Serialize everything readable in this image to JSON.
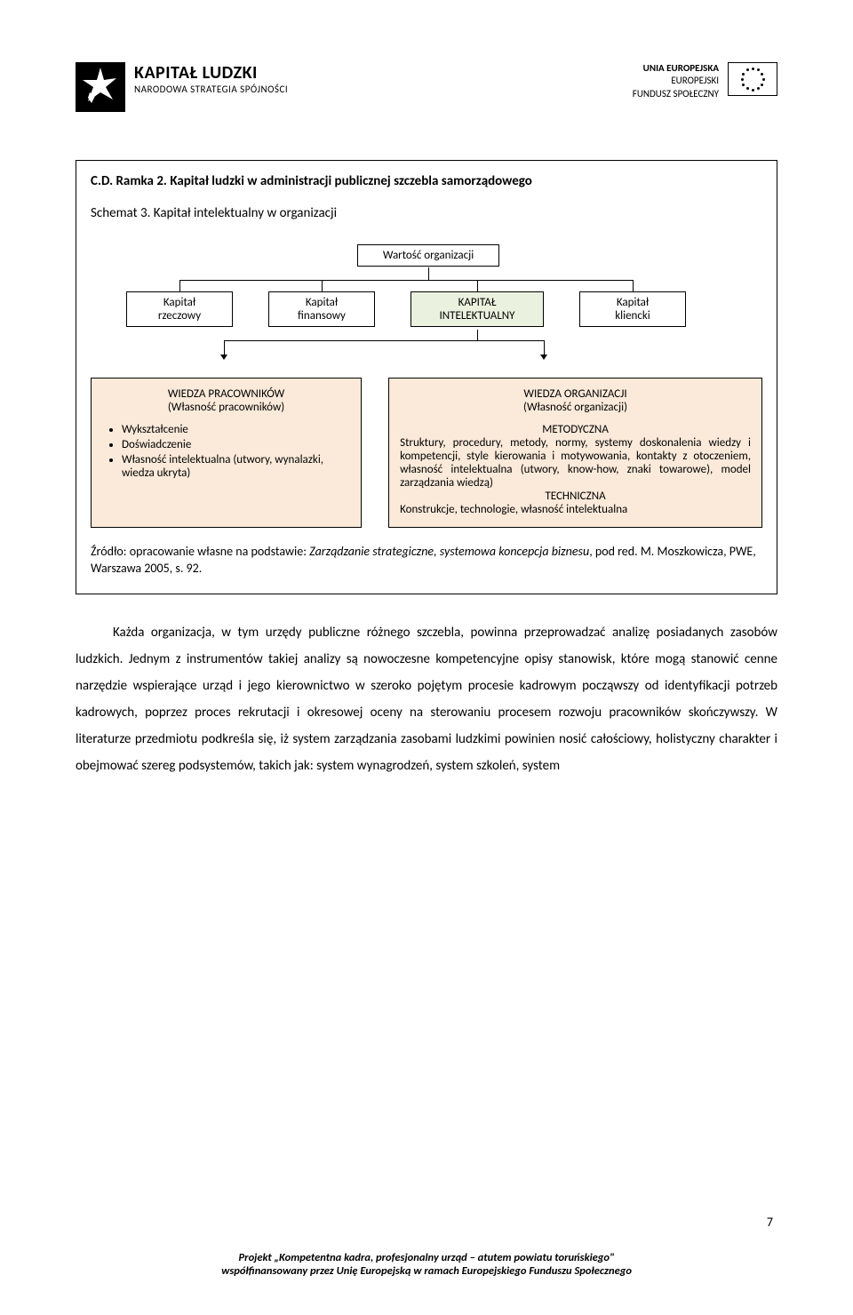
{
  "header": {
    "left": {
      "title": "KAPITAŁ LUDZKI",
      "sub": "NARODOWA STRATEGIA SPÓJNOŚCI"
    },
    "right": {
      "l1": "UNIA EUROPEJSKA",
      "l2": "EUROPEJSKI",
      "l3": "FUNDUSZ SPOŁECZNY"
    }
  },
  "frame": {
    "title": "C.D. Ramka 2. Kapitał ludzki w administracji publicznej szczebla samorządowego",
    "subtitle": "Schemat 3. Kapitał intelektualny w organizacji",
    "top_box": "Wartość organizacji",
    "row": {
      "b1a": "Kapitał",
      "b1b": "rzeczowy",
      "b2a": "Kapitał",
      "b2b": "finansowy",
      "b3a": "KAPITAŁ",
      "b3b": "INTELEKTUALNY",
      "b4a": "Kapitał",
      "b4b": "kliencki"
    },
    "panel_left": {
      "h": "WIEDZA PRACOWNIKÓW",
      "sub": "(Własność pracowników)",
      "items": [
        "Wykształcenie",
        "Doświadczenie",
        "Własność intelektualna (utwory, wynalazki, wiedza ukryta)"
      ]
    },
    "panel_right": {
      "h": "WIEDZA ORGANIZACJI",
      "sub": "(Własność organizacji)",
      "met_label": "METODYCZNA",
      "met_body": "Struktury, procedury, metody, normy, systemy doskonalenia wiedzy i kompetencji, style kierowania i motywowania, kontakty z otoczeniem, własność intelektualna (utwory, know-how, znaki towarowe), model zarządzania wiedzą)",
      "tech_label": "TECHNICZNA",
      "tech_body": "Konstrukcje, technologie, własność intelektualna"
    },
    "source_pre": "Źródło: opracowanie własne na podstawie: ",
    "source_ital": "Zarządzanie strategiczne, systemowa koncepcja biznesu",
    "source_post": ", pod red. M. Moszkowicza, PWE, Warszawa 2005, s. 92."
  },
  "body_para": "Każda organizacja, w tym urzędy publiczne różnego szczebla, powinna przeprowadzać analizę posiadanych zasobów ludzkich. Jednym z instrumentów takiej analizy są nowoczesne kompetencyjne opisy stanowisk, które mogą stanowić cenne narzędzie wspierające urząd i jego kierownictwo w szeroko pojętym procesie kadrowym począwszy od identyfikacji potrzeb kadrowych, poprzez proces rekrutacji i okresowej oceny na sterowaniu procesem rozwoju pracowników skończywszy. W literaturze przedmiotu podkreśla się, iż system zarządzania zasobami ludzkimi powinien nosić całościowy, holistyczny charakter i obejmować szereg podsystemów, takich jak: system wynagrodzeń, system szkoleń, system",
  "footer": {
    "l1": "Projekt „Kompetentna kadra, profesjonalny urząd – atutem powiatu toruńskiego\"",
    "l2": "współfinansowany przez Unię Europejską w ramach Europejskiego Funduszu Społecznego"
  },
  "page_num": "7",
  "colors": {
    "panel_bg": "#fbeada",
    "highlight_bg": "#eaf1de",
    "border": "#000000"
  }
}
